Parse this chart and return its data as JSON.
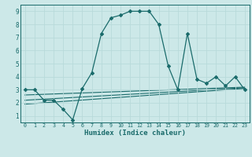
{
  "xlabel": "Humidex (Indice chaleur)",
  "background_color": "#cce8e8",
  "grid_color": "#aad4d4",
  "line_color": "#1a6b6b",
  "xlim": [
    -0.5,
    23.5
  ],
  "ylim": [
    0.5,
    9.5
  ],
  "xticks": [
    0,
    1,
    2,
    3,
    4,
    5,
    6,
    7,
    8,
    9,
    10,
    11,
    12,
    13,
    14,
    15,
    16,
    17,
    18,
    19,
    20,
    21,
    22,
    23
  ],
  "yticks": [
    1,
    2,
    3,
    4,
    5,
    6,
    7,
    8,
    9
  ],
  "main_x": [
    0,
    1,
    2,
    3,
    4,
    5,
    6,
    7,
    8,
    9,
    10,
    11,
    12,
    13,
    14,
    15,
    16,
    17,
    18,
    19,
    20,
    21,
    22,
    23
  ],
  "main_y": [
    3.0,
    3.0,
    2.2,
    2.2,
    1.5,
    0.7,
    3.1,
    4.3,
    7.3,
    8.5,
    8.7,
    9.0,
    9.0,
    9.0,
    8.0,
    4.8,
    3.0,
    7.3,
    3.8,
    3.5,
    4.0,
    3.3,
    4.0,
    3.0
  ],
  "line1_x": [
    0,
    23
  ],
  "line1_y": [
    1.9,
    3.1
  ],
  "line2_x": [
    0,
    23
  ],
  "line2_y": [
    2.2,
    3.15
  ],
  "line3_x": [
    0,
    23
  ],
  "line3_y": [
    2.6,
    3.2
  ],
  "figsize": [
    3.2,
    2.0
  ],
  "dpi": 100
}
